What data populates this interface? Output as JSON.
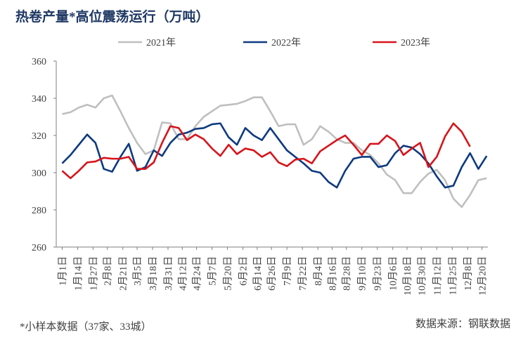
{
  "chart_data": {
    "type": "line",
    "title": "热卷产量*高位震荡运行（万吨）",
    "note": "*小样本数据（37家、33城）",
    "source": "数据来源：钢联数据",
    "x": [
      0,
      7,
      14,
      21,
      28,
      35,
      42,
      49,
      56,
      63,
      70,
      77,
      84,
      91,
      98,
      105,
      112,
      119,
      126,
      133,
      140,
      147,
      154,
      161,
      168,
      175,
      182,
      189,
      196,
      203,
      210,
      217,
      224,
      231,
      238,
      245,
      252,
      259,
      266,
      273,
      280,
      287,
      294,
      301,
      308,
      315,
      322,
      329,
      336,
      343,
      350,
      357
    ],
    "xlim": [
      -5,
      358
    ],
    "xticks": [
      {
        "value": 0,
        "label": "1月1日"
      },
      {
        "value": 13,
        "label": "1月14日"
      },
      {
        "value": 26,
        "label": "1月27日"
      },
      {
        "value": 38,
        "label": "2月8日"
      },
      {
        "value": 51,
        "label": "2月21日"
      },
      {
        "value": 63,
        "label": "3月5日"
      },
      {
        "value": 76,
        "label": "3月18日"
      },
      {
        "value": 89,
        "label": "3月31日"
      },
      {
        "value": 101,
        "label": "4月12日"
      },
      {
        "value": 113,
        "label": "4月24日"
      },
      {
        "value": 126,
        "label": "5月7日"
      },
      {
        "value": 139,
        "label": "5月20日"
      },
      {
        "value": 152,
        "label": "6月2日"
      },
      {
        "value": 164,
        "label": "6月14日"
      },
      {
        "value": 176,
        "label": "6月26日"
      },
      {
        "value": 189,
        "label": "7月9日"
      },
      {
        "value": 202,
        "label": "7月22日"
      },
      {
        "value": 215,
        "label": "8月4日"
      },
      {
        "value": 227,
        "label": "8月16日"
      },
      {
        "value": 239,
        "label": "8月28日"
      },
      {
        "value": 252,
        "label": "9月10日"
      },
      {
        "value": 265,
        "label": "9月23日"
      },
      {
        "value": 278,
        "label": "10月6日"
      },
      {
        "value": 290,
        "label": "10月18日"
      },
      {
        "value": 302,
        "label": "10月30日"
      },
      {
        "value": 315,
        "label": "11月12日"
      },
      {
        "value": 328,
        "label": "11月25日"
      },
      {
        "value": 341,
        "label": "12月8日"
      },
      {
        "value": 353,
        "label": "12月20日"
      }
    ],
    "ylim": [
      260,
      360
    ],
    "yticks": [
      260,
      280,
      300,
      320,
      340,
      360
    ],
    "grid": false,
    "legend": "top",
    "series": [
      {
        "name": "2021年",
        "color": "#bfbfbf",
        "values": [
          331.5,
          332.5,
          335,
          336.5,
          335,
          340,
          341.5,
          333,
          324,
          316,
          310,
          312,
          327,
          326.5,
          318,
          318,
          325,
          330,
          333,
          336,
          336.5,
          337,
          338.5,
          340.5,
          340.5,
          333,
          325,
          326,
          326,
          315,
          318,
          325,
          322,
          318,
          316,
          316,
          312,
          309.5,
          305,
          299,
          296,
          289,
          289,
          295,
          299.5,
          301.5,
          296,
          286,
          281.5,
          288,
          296,
          297
        ]
      },
      {
        "name": "2022年",
        "color": "#0d3a80",
        "values": [
          305,
          309.5,
          315,
          320.5,
          316,
          302,
          300.5,
          308.5,
          315.5,
          301,
          303,
          312,
          309,
          316,
          320.5,
          321.5,
          323.5,
          324,
          326,
          326.5,
          319,
          315,
          324,
          320,
          317.5,
          324,
          318,
          312,
          308.5,
          305,
          301,
          300,
          295,
          292,
          301,
          307.5,
          308.5,
          308.5,
          303,
          304,
          310.5,
          314.5,
          313.5,
          310,
          305,
          298,
          292,
          293,
          303,
          310.5,
          302,
          309
        ]
      },
      {
        "name": "2023年",
        "color": "#d7141b",
        "values": [
          301,
          297,
          301,
          305.5,
          306,
          308,
          307.5,
          307.5,
          308.5,
          302,
          302,
          305.5,
          316,
          325,
          324,
          317.5,
          320.5,
          318,
          313,
          309,
          315,
          310,
          313,
          312,
          308.5,
          311,
          305.5,
          303.5,
          307,
          307.5,
          305,
          311.5,
          314.5,
          317.5,
          320,
          315,
          309.5,
          315.5,
          315.5,
          320,
          317,
          309.5,
          313,
          316,
          303,
          308.5,
          319.5,
          326.5,
          322,
          314,
          null,
          null
        ]
      }
    ]
  }
}
